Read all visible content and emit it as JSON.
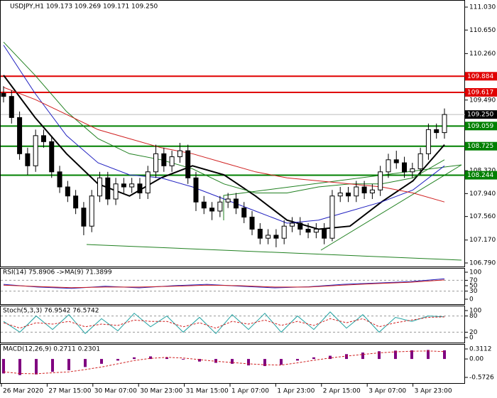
{
  "chart_data": [
    {
      "type": "candlestick",
      "title": "USDJPY,H1  109.173 109.269 109.171 109.250",
      "open": [
        109.6,
        109.55,
        109.2,
        108.6,
        108.4,
        108.9,
        108.8,
        108.3,
        108.05,
        107.9,
        107.7,
        107.4,
        107.9,
        108.2,
        107.85,
        108.1,
        108.05,
        108.1,
        107.95,
        108.3,
        108.6,
        108.4,
        108.55,
        108.65,
        108.2,
        107.8,
        107.7,
        107.65,
        107.8,
        107.85,
        107.7,
        107.55,
        107.35,
        107.2,
        107.25,
        107.2,
        107.4,
        107.45,
        107.35,
        107.3,
        107.35,
        107.2,
        107.9,
        107.95,
        107.9,
        108.05,
        107.95,
        108.0,
        108.3,
        108.5,
        108.45,
        108.3,
        108.35,
        108.6,
        109.0,
        108.95
      ],
      "high": [
        109.72,
        109.65,
        109.3,
        108.7,
        109.0,
        109.0,
        108.9,
        108.4,
        108.15,
        108.0,
        107.8,
        108.0,
        108.3,
        108.3,
        108.2,
        108.2,
        108.2,
        108.2,
        108.4,
        108.75,
        108.7,
        108.65,
        108.78,
        108.75,
        108.3,
        107.9,
        107.8,
        107.9,
        107.95,
        107.95,
        107.8,
        107.65,
        107.45,
        107.35,
        107.35,
        107.5,
        107.55,
        107.55,
        107.45,
        107.45,
        107.45,
        108.0,
        108.05,
        108.05,
        108.15,
        108.15,
        108.1,
        108.4,
        108.6,
        108.65,
        108.55,
        108.45,
        108.7,
        109.1,
        109.1,
        109.35
      ],
      "low": [
        109.45,
        109.1,
        108.5,
        108.25,
        108.3,
        108.7,
        108.2,
        107.95,
        107.8,
        107.6,
        107.25,
        107.3,
        107.8,
        107.75,
        107.75,
        107.95,
        107.95,
        107.85,
        107.85,
        108.2,
        108.3,
        108.3,
        108.45,
        108.1,
        107.65,
        107.6,
        107.5,
        107.55,
        107.7,
        107.6,
        107.45,
        107.25,
        107.1,
        107.1,
        107.05,
        107.1,
        107.3,
        107.25,
        107.2,
        107.2,
        107.1,
        107.15,
        107.8,
        107.8,
        107.8,
        107.85,
        107.85,
        107.9,
        108.2,
        108.35,
        108.2,
        108.2,
        108.25,
        108.5,
        108.85,
        108.85
      ],
      "close": [
        109.55,
        109.2,
        108.6,
        108.4,
        108.9,
        108.8,
        108.3,
        108.05,
        107.9,
        107.7,
        107.4,
        107.9,
        108.2,
        107.85,
        108.1,
        108.05,
        108.1,
        107.95,
        108.3,
        108.6,
        108.4,
        108.55,
        108.65,
        108.2,
        107.8,
        107.7,
        107.65,
        107.8,
        107.85,
        107.7,
        107.55,
        107.35,
        107.2,
        107.25,
        107.2,
        107.4,
        107.45,
        107.35,
        107.3,
        107.35,
        107.2,
        107.9,
        107.95,
        107.9,
        108.05,
        107.95,
        108.0,
        108.3,
        108.5,
        108.45,
        108.3,
        108.35,
        108.6,
        109.0,
        108.95,
        109.25
      ],
      "ma_series": [
        {
          "color": "#000000",
          "values": [
            109.9,
            109.2,
            108.6,
            108.1,
            107.9,
            108.2,
            108.4,
            108.25,
            107.9,
            107.5,
            107.35,
            107.4,
            107.8,
            108.15,
            108.75
          ]
        },
        {
          "color": "#2020c0",
          "values": [
            110.4,
            109.6,
            108.9,
            108.45,
            108.25,
            108.2,
            108.05,
            107.85,
            107.65,
            107.45,
            107.5,
            107.65,
            107.8,
            108.0,
            108.4
          ]
        },
        {
          "color": "#208020",
          "values": [
            110.45,
            109.9,
            109.3,
            108.85,
            108.6,
            108.5,
            108.35,
            108.1,
            107.95,
            107.95,
            108.05,
            108.1,
            108.1,
            108.2,
            108.5
          ]
        },
        {
          "color": "#d02020",
          "values": [
            109.7,
            109.5,
            109.25,
            109.0,
            108.85,
            108.7,
            108.6,
            108.45,
            108.3,
            108.2,
            108.15,
            108.1,
            108.05,
            107.95,
            107.8
          ]
        }
      ],
      "levels": [
        {
          "value": 109.884,
          "label": "109.884",
          "color": "#e00000"
        },
        {
          "value": 109.617,
          "label": "109.617",
          "color": "#e00000"
        },
        {
          "value": 109.059,
          "label": "109.059",
          "color": "#008000"
        },
        {
          "value": 108.725,
          "label": "108.725",
          "color": "#008000"
        },
        {
          "value": 108.244,
          "label": "108.244",
          "color": "#008000"
        }
      ],
      "last_price": {
        "value": 109.25,
        "label": "109.250"
      },
      "ylim": [
        106.79,
        111.03
      ],
      "yticks": [
        {
          "value": 111.03,
          "label": "111.030"
        },
        {
          "value": 110.65,
          "label": "110.650"
        },
        {
          "value": 110.26,
          "label": "110.260"
        },
        {
          "value": 109.49,
          "label": "109.490"
        },
        {
          "value": 108.32,
          "label": "108.320"
        },
        {
          "value": 107.94,
          "label": "107.940"
        },
        {
          "value": 107.56,
          "label": "107.560"
        },
        {
          "value": 107.17,
          "label": "107.170"
        },
        {
          "value": 106.79,
          "label": "106.790"
        }
      ],
      "time_labels": [
        "26 Mar 2020",
        "27 Mar 15:00",
        "30 Mar 07:00",
        "30 Mar 23:00",
        "31 Mar 15:00",
        "1 Apr 07:00",
        "1 Apr 23:00",
        "2 Apr 15:00",
        "3 Apr 07:00",
        "3 Apr 23:00"
      ]
    },
    {
      "type": "line",
      "title": "RSI(14) 75.8906 ->MA(9) 71.3899",
      "series": [
        {
          "color": "#2020c0",
          "values": [
            55,
            45,
            40,
            48,
            42,
            50,
            55,
            48,
            42,
            46,
            55,
            60,
            65,
            75.9
          ]
        },
        {
          "color": "#d02020",
          "values": [
            52,
            47,
            43,
            45,
            45,
            48,
            52,
            50,
            45,
            45,
            52,
            58,
            63,
            71.4
          ]
        }
      ],
      "ylim": [
        0,
        100
      ],
      "yticks": [
        100,
        70,
        50,
        30,
        0
      ],
      "dashed_levels": [
        70,
        30
      ]
    },
    {
      "type": "line",
      "title": "Stoch(5,3,3) 76.9542 76.5742",
      "series": [
        {
          "color": "#20a0a0",
          "values": [
            60,
            20,
            80,
            30,
            85,
            15,
            70,
            25,
            90,
            40,
            80,
            20,
            75,
            15,
            85,
            30,
            90,
            20,
            80,
            30,
            95,
            35,
            85,
            20,
            75,
            60,
            80,
            77
          ]
        },
        {
          "color": "#d02020",
          "values": [
            55,
            35,
            55,
            50,
            60,
            40,
            50,
            45,
            65,
            60,
            60,
            40,
            55,
            35,
            60,
            50,
            65,
            45,
            60,
            45,
            70,
            55,
            70,
            40,
            55,
            65,
            75,
            76.6
          ]
        }
      ],
      "ylim": [
        0,
        100
      ],
      "yticks": [
        100,
        80,
        20,
        0
      ],
      "dashed_levels": [
        80,
        20
      ]
    },
    {
      "type": "histogram",
      "title": "MACD(12,26,9) 0.2711 0.2301",
      "values": [
        -0.45,
        -0.5,
        -0.48,
        -0.4,
        -0.35,
        -0.25,
        -0.15,
        -0.05,
        0.05,
        0.08,
        0.05,
        -0.02,
        -0.08,
        -0.12,
        -0.15,
        -0.2,
        -0.22,
        -0.18,
        -0.05,
        0.05,
        0.1,
        0.15,
        0.2,
        0.24,
        0.26,
        0.27,
        0.28,
        0.27
      ],
      "signal": [
        -0.4,
        -0.45,
        -0.46,
        -0.43,
        -0.4,
        -0.33,
        -0.25,
        -0.15,
        -0.05,
        0.02,
        0.05,
        0.03,
        -0.02,
        -0.07,
        -0.11,
        -0.15,
        -0.18,
        -0.19,
        -0.12,
        -0.04,
        0.03,
        0.09,
        0.14,
        0.19,
        0.22,
        0.24,
        0.25,
        0.23
      ],
      "color": "#800080",
      "signal_color": "#d02020",
      "ylim": [
        -0.5726,
        0.3112
      ],
      "yticks": [
        0.3112,
        {
          "value": 0,
          "label": "0.00"
        },
        -0.5726
      ]
    }
  ]
}
